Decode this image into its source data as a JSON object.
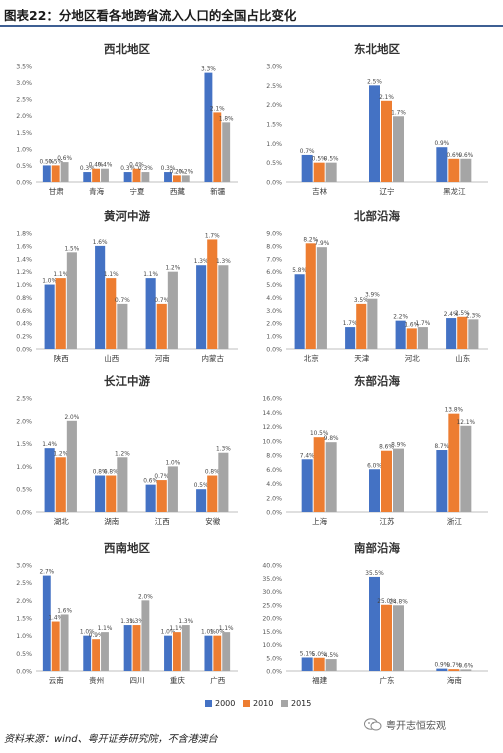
{
  "header": {
    "title": "图表22：分地区看各地跨省流入人口的全国占比变化"
  },
  "colors": {
    "s2000": "#4472c4",
    "s2010": "#ed7d31",
    "s2015": "#a5a5a5",
    "rule": "#3e5f93",
    "grid": "#d9d9d9"
  },
  "legend": {
    "items": [
      "2000",
      "2010",
      "2015"
    ]
  },
  "footer": {
    "source": "资料来源：wind、粤开证券研究院，不含港澳台"
  },
  "watermark": {
    "text": "粤开志恒宏观",
    "icon": "wechat-icon"
  },
  "chart_data": [
    {
      "type": "bar",
      "title": "西北地区",
      "categories": [
        "甘肃",
        "青海",
        "宁夏",
        "西藏",
        "新疆"
      ],
      "series": [
        {
          "name": "2000",
          "values": [
            0.5,
            0.3,
            0.3,
            0.3,
            3.3
          ]
        },
        {
          "name": "2010",
          "values": [
            0.5,
            0.4,
            0.4,
            0.2,
            2.1
          ]
        },
        {
          "name": "2015",
          "values": [
            0.6,
            0.4,
            0.3,
            0.2,
            1.8
          ]
        }
      ],
      "yticks": [
        "0.0%",
        "0.5%",
        "1.0%",
        "1.5%",
        "2.0%",
        "2.5%",
        "3.0%",
        "3.5%"
      ],
      "ylim": [
        0,
        3.5
      ]
    },
    {
      "type": "bar",
      "title": "东北地区",
      "categories": [
        "吉林",
        "辽宁",
        "黑龙江"
      ],
      "series": [
        {
          "name": "2000",
          "values": [
            0.7,
            2.5,
            0.9
          ]
        },
        {
          "name": "2010",
          "values": [
            0.5,
            2.1,
            0.6
          ]
        },
        {
          "name": "2015",
          "values": [
            0.5,
            1.7,
            0.6
          ]
        }
      ],
      "yticks": [
        "0.0%",
        "0.5%",
        "1.0%",
        "1.5%",
        "2.0%",
        "2.5%",
        "3.0%"
      ],
      "ylim": [
        0,
        3.0
      ]
    },
    {
      "type": "bar",
      "title": "黄河中游",
      "categories": [
        "陕西",
        "山西",
        "河南",
        "内蒙古"
      ],
      "series": [
        {
          "name": "2000",
          "values": [
            1.0,
            1.6,
            1.1,
            1.3
          ]
        },
        {
          "name": "2010",
          "values": [
            1.1,
            1.1,
            0.7,
            1.7
          ]
        },
        {
          "name": "2015",
          "values": [
            1.5,
            0.7,
            1.2,
            1.3
          ]
        }
      ],
      "yticks": [
        "0.0%",
        "0.2%",
        "0.4%",
        "0.6%",
        "0.8%",
        "1.0%",
        "1.2%",
        "1.4%",
        "1.6%",
        "1.8%"
      ],
      "ylim": [
        0,
        1.8
      ]
    },
    {
      "type": "bar",
      "title": "北部沿海",
      "categories": [
        "北京",
        "天津",
        "河北",
        "山东"
      ],
      "series": [
        {
          "name": "2000",
          "values": [
            5.8,
            1.7,
            2.2,
            2.4
          ]
        },
        {
          "name": "2010",
          "values": [
            8.2,
            3.5,
            1.6,
            2.5
          ]
        },
        {
          "name": "2015",
          "values": [
            7.9,
            3.9,
            1.7,
            2.3
          ]
        }
      ],
      "yticks": [
        "0.0%",
        "1.0%",
        "2.0%",
        "3.0%",
        "4.0%",
        "5.0%",
        "6.0%",
        "7.0%",
        "8.0%",
        "9.0%"
      ],
      "ylim": [
        0,
        9.0
      ]
    },
    {
      "type": "bar",
      "title": "长江中游",
      "categories": [
        "湖北",
        "湖南",
        "江西",
        "安徽"
      ],
      "series": [
        {
          "name": "2000",
          "values": [
            1.4,
            0.8,
            0.6,
            0.5
          ]
        },
        {
          "name": "2010",
          "values": [
            1.2,
            0.8,
            0.7,
            0.8
          ]
        },
        {
          "name": "2015",
          "values": [
            2.0,
            1.2,
            1.0,
            1.3
          ]
        }
      ],
      "yticks": [
        "0.0%",
        "0.5%",
        "1.0%",
        "1.5%",
        "2.0%",
        "2.5%"
      ],
      "ylim": [
        0,
        2.5
      ]
    },
    {
      "type": "bar",
      "title": "东部沿海",
      "categories": [
        "上海",
        "江苏",
        "浙江"
      ],
      "series": [
        {
          "name": "2000",
          "values": [
            7.4,
            6.0,
            8.7
          ]
        },
        {
          "name": "2010",
          "values": [
            10.5,
            8.6,
            13.8
          ]
        },
        {
          "name": "2015",
          "values": [
            9.8,
            8.9,
            12.1
          ]
        }
      ],
      "yticks": [
        "0.0%",
        "2.0%",
        "4.0%",
        "6.0%",
        "8.0%",
        "10.0%",
        "12.0%",
        "14.0%",
        "16.0%"
      ],
      "ylim": [
        0,
        16.0
      ]
    },
    {
      "type": "bar",
      "title": "西南地区",
      "categories": [
        "云南",
        "贵州",
        "四川",
        "重庆",
        "广西"
      ],
      "series": [
        {
          "name": "2000",
          "values": [
            2.7,
            1.0,
            1.3,
            1.0,
            1.0
          ]
        },
        {
          "name": "2010",
          "values": [
            1.4,
            0.9,
            1.3,
            1.1,
            1.0
          ]
        },
        {
          "name": "2015",
          "values": [
            1.6,
            1.1,
            2.0,
            1.3,
            1.1
          ]
        }
      ],
      "yticks": [
        "0.0%",
        "0.5%",
        "1.0%",
        "1.5%",
        "2.0%",
        "2.5%",
        "3.0%"
      ],
      "ylim": [
        0,
        3.0
      ]
    },
    {
      "type": "bar",
      "title": "南部沿海",
      "categories": [
        "福建",
        "广东",
        "海南"
      ],
      "series": [
        {
          "name": "2000",
          "values": [
            5.1,
            35.5,
            0.9
          ]
        },
        {
          "name": "2010",
          "values": [
            5.0,
            25.0,
            0.7
          ]
        },
        {
          "name": "2015",
          "values": [
            4.5,
            24.8,
            0.6
          ]
        }
      ],
      "yticks": [
        "0.0%",
        "5.0%",
        "10.0%",
        "15.0%",
        "20.0%",
        "25.0%",
        "30.0%",
        "35.0%",
        "40.0%"
      ],
      "ylim": [
        0,
        40.0
      ]
    }
  ]
}
